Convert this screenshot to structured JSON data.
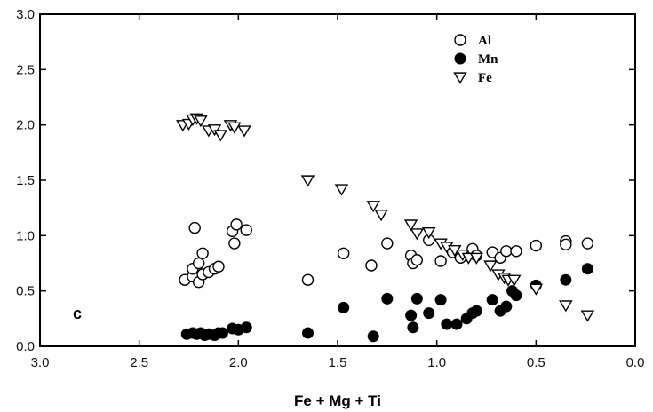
{
  "chart_data": {
    "type": "scatter",
    "xlabel": "Fe + Mg + Ti",
    "ylabel": "",
    "panel_label": "c",
    "xlim": [
      3.0,
      0.0
    ],
    "ylim": [
      0.0,
      3.0
    ],
    "x_reversed": true,
    "xticks": [
      "3.0",
      "2.5",
      "2.0",
      "1.5",
      "1.0",
      "0.5",
      "0.0"
    ],
    "xtick_values": [
      3.0,
      2.5,
      2.0,
      1.5,
      1.0,
      0.5,
      0.0
    ],
    "yticks": [
      "0.0",
      "0.5",
      "1.0",
      "1.5",
      "2.0",
      "2.5",
      "3.0"
    ],
    "ytick_values": [
      0.0,
      0.5,
      1.0,
      1.5,
      2.0,
      2.5,
      3.0
    ],
    "grid": false,
    "legend_position": "top-right",
    "series": [
      {
        "name": "Al",
        "marker": "open-circle",
        "x": [
          2.27,
          2.23,
          2.2,
          2.18,
          2.23,
          2.2,
          2.15,
          2.12,
          2.1,
          2.18,
          2.22,
          2.03,
          2.01,
          2.02,
          1.96,
          1.65,
          1.47,
          1.33,
          1.25,
          1.13,
          1.12,
          1.1,
          1.04,
          0.98,
          0.92,
          0.88,
          0.82,
          0.8,
          0.72,
          0.68,
          0.65,
          0.6,
          0.5,
          0.35,
          0.35,
          0.24
        ],
        "y": [
          0.6,
          0.63,
          0.58,
          0.65,
          0.7,
          0.75,
          0.67,
          0.7,
          0.72,
          0.84,
          1.07,
          1.04,
          1.1,
          0.93,
          1.05,
          0.6,
          0.84,
          0.73,
          0.93,
          0.82,
          0.75,
          0.78,
          0.96,
          0.77,
          0.85,
          0.8,
          0.88,
          0.82,
          0.85,
          0.8,
          0.86,
          0.86,
          0.91,
          0.95,
          0.92,
          0.93
        ]
      },
      {
        "name": "Mn",
        "marker": "filled-circle",
        "x": [
          2.26,
          2.23,
          2.21,
          2.19,
          2.17,
          2.15,
          2.12,
          2.1,
          2.08,
          2.03,
          2.0,
          1.96,
          1.65,
          1.47,
          1.32,
          1.25,
          1.13,
          1.12,
          1.1,
          1.04,
          0.98,
          0.95,
          0.9,
          0.85,
          0.82,
          0.8,
          0.72,
          0.68,
          0.65,
          0.62,
          0.6,
          0.5,
          0.35,
          0.24
        ],
        "y": [
          0.11,
          0.12,
          0.11,
          0.12,
          0.1,
          0.11,
          0.1,
          0.12,
          0.12,
          0.16,
          0.15,
          0.17,
          0.12,
          0.35,
          0.09,
          0.43,
          0.28,
          0.17,
          0.43,
          0.3,
          0.42,
          0.2,
          0.2,
          0.25,
          0.3,
          0.32,
          0.42,
          0.32,
          0.36,
          0.5,
          0.46,
          0.55,
          0.6,
          0.7
        ]
      },
      {
        "name": "Fe",
        "marker": "open-triangle-down",
        "x": [
          2.28,
          2.25,
          2.23,
          2.21,
          2.19,
          2.15,
          2.12,
          2.09,
          2.04,
          2.02,
          1.97,
          1.65,
          1.48,
          1.32,
          1.28,
          1.13,
          1.1,
          1.04,
          0.98,
          0.95,
          0.91,
          0.87,
          0.84,
          0.8,
          0.73,
          0.69,
          0.66,
          0.64,
          0.61,
          0.5,
          0.35,
          0.24
        ],
        "y": [
          2.0,
          2.01,
          2.05,
          2.06,
          2.04,
          1.95,
          1.96,
          1.91,
          2.0,
          1.98,
          1.95,
          1.5,
          1.42,
          1.27,
          1.19,
          1.1,
          1.02,
          1.03,
          0.93,
          0.9,
          0.87,
          0.83,
          0.8,
          0.8,
          0.73,
          0.65,
          0.62,
          0.6,
          0.6,
          0.52,
          0.37,
          0.28
        ]
      }
    ]
  }
}
